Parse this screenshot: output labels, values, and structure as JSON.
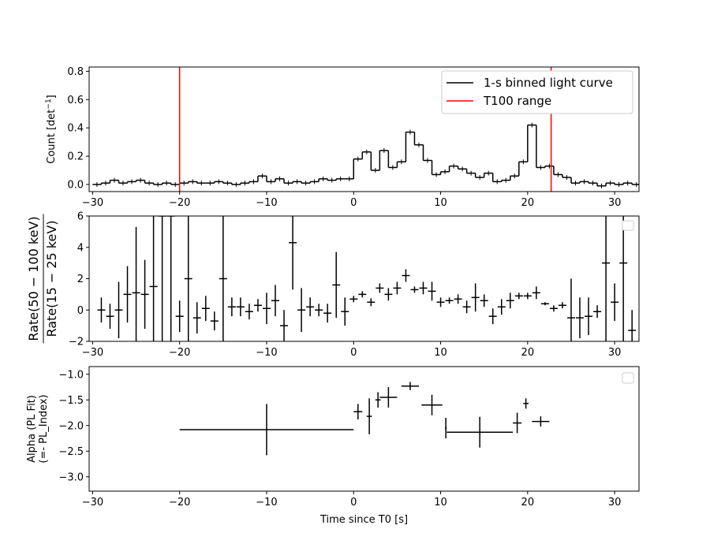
{
  "chart_data": [
    {
      "type": "step",
      "ylabel": {
        "text": "Count [det",
        "superscript": "−1",
        "suffix": "]"
      },
      "x": [
        -29.5,
        -28.5,
        -27.5,
        -26.5,
        -25.5,
        -24.5,
        -23.5,
        -22.5,
        -21.5,
        -20.5,
        -19.5,
        -18.5,
        -17.5,
        -16.5,
        -15.5,
        -14.5,
        -13.5,
        -12.5,
        -11.5,
        -10.5,
        -9.5,
        -8.5,
        -7.5,
        -6.5,
        -5.5,
        -4.5,
        -3.5,
        -2.5,
        -1.5,
        -0.5,
        0.5,
        1.5,
        2.5,
        3.5,
        4.5,
        5.5,
        6.5,
        7.5,
        8.5,
        9.5,
        10.5,
        11.5,
        12.5,
        13.5,
        14.5,
        15.5,
        16.5,
        17.5,
        18.5,
        19.5,
        20.5,
        21.5,
        22.5,
        23.5,
        24.5,
        25.5,
        26.5,
        27.5,
        28.5,
        29.5,
        30.5,
        31.5,
        32.5
      ],
      "series": [
        {
          "name": "1-s binned light curve",
          "color": "#000000",
          "values": [
            0.0,
            0.01,
            0.03,
            0.01,
            0.02,
            0.03,
            0.01,
            0.0,
            0.01,
            0.0,
            0.01,
            0.02,
            0.01,
            0.01,
            0.02,
            0.01,
            0.0,
            0.01,
            0.02,
            0.06,
            0.02,
            0.04,
            0.01,
            0.02,
            0.01,
            0.02,
            0.04,
            0.03,
            0.04,
            0.04,
            0.18,
            0.23,
            0.1,
            0.24,
            0.12,
            0.16,
            0.37,
            0.28,
            0.17,
            0.07,
            0.09,
            0.13,
            0.11,
            0.08,
            0.05,
            0.08,
            0.02,
            0.03,
            0.06,
            0.16,
            0.42,
            0.12,
            0.13,
            0.07,
            0.05,
            0.01,
            0.02,
            0.01,
            -0.01,
            0.01,
            0.0,
            0.01,
            0.0
          ]
        }
      ],
      "vlines": {
        "name": "T100 range",
        "color": "#ff0000",
        "x": [
          -20.0,
          22.7
        ]
      },
      "legend": "upper right",
      "xlim": [
        -30.4,
        32.8
      ],
      "xticks": [
        {
          "value": -30,
          "label": "−30"
        },
        {
          "value": -20,
          "label": "−20"
        },
        {
          "value": -10,
          "label": "−10"
        },
        0,
        10,
        20,
        30
      ],
      "ylim": [
        -0.05,
        0.83
      ],
      "yticks": [
        {
          "value": 0.0,
          "label": "0.0"
        },
        {
          "value": 0.2,
          "label": "0.2"
        },
        {
          "value": 0.4,
          "label": "0.4"
        },
        {
          "value": 0.6,
          "label": "0.6"
        },
        {
          "value": 0.8,
          "label": "0.8"
        }
      ]
    },
    {
      "type": "errorbar",
      "ylabel": {
        "numerator": "Rate(50 − 100 keV)",
        "denominator": "Rate(15 − 25 keV)"
      },
      "color": "#000000",
      "x": [
        -29,
        -28,
        -27,
        -26,
        -25,
        -24,
        -23,
        -22,
        -21,
        -20,
        -19,
        -18,
        -17,
        -16,
        -15,
        -14,
        -13,
        -12,
        -11,
        -10,
        -9,
        -8,
        -7,
        -6,
        -5,
        -4,
        -3,
        -2,
        -1,
        0,
        1,
        2,
        3,
        4,
        5,
        6,
        7,
        8,
        9,
        10,
        11,
        12,
        13,
        14,
        15,
        16,
        17,
        18,
        19,
        20,
        21,
        22,
        23,
        24,
        25,
        26,
        27,
        28,
        29,
        30,
        31,
        32
      ],
      "values": [
        0,
        -0.4,
        0,
        1.0,
        1.1,
        1.0,
        1.5,
        6,
        6,
        -0.4,
        2,
        -0.5,
        0.1,
        -0.7,
        2,
        0.2,
        0.2,
        -0.1,
        0.3,
        0.1,
        0.6,
        -1.0,
        4.3,
        0,
        0.2,
        0,
        -0.2,
        1.6,
        -0.1,
        0.7,
        1.0,
        0.5,
        1.4,
        1.0,
        1.4,
        2.2,
        1.3,
        1.4,
        1.2,
        0.5,
        0.6,
        0.7,
        0.2,
        0.8,
        0.6,
        -0.4,
        0.2,
        0.6,
        0.9,
        0.9,
        1.1,
        0.4,
        0.1,
        0.3,
        -0.5,
        -0.5,
        -0.4,
        -0.1,
        3,
        0.5,
        3,
        -1.3
      ],
      "errors": [
        0.8,
        0.8,
        1.8,
        1.8,
        4.2,
        2.2,
        8,
        8,
        8,
        1.0,
        8,
        1.0,
        0.8,
        0.6,
        8,
        0.6,
        0.6,
        0.5,
        0.4,
        1.0,
        1.0,
        1.0,
        3,
        1.4,
        0.6,
        0.4,
        0.6,
        2.1,
        0.9,
        0.2,
        0.2,
        0.25,
        0.3,
        0.4,
        0.4,
        0.4,
        0.2,
        0.4,
        0.6,
        0.3,
        0.2,
        0.3,
        0.4,
        0.9,
        0.4,
        0.5,
        0.5,
        0.5,
        0.2,
        0.2,
        0.4,
        0.1,
        0.2,
        0.2,
        2.5,
        1.3,
        1.2,
        0.4,
        8,
        1.2,
        8,
        1.3
      ],
      "xlim": [
        -30.4,
        32.8
      ],
      "xticks": [
        {
          "value": -30,
          "label": "−30"
        },
        {
          "value": -20,
          "label": "−20"
        },
        {
          "value": -10,
          "label": "−10"
        },
        0,
        10,
        20,
        30
      ],
      "ylim": [
        -2,
        6
      ],
      "yticks": [
        {
          "value": -2,
          "label": "−2"
        },
        0,
        2,
        4,
        6
      ]
    },
    {
      "type": "errorbar",
      "ylabel": {
        "line1": "Alpha (PL Fit)",
        "line2": "(=- PL_Index)"
      },
      "xlabel": "Time since T0 [s]",
      "color": "#000000",
      "x": [
        -10,
        0.5,
        1.8,
        2.8,
        4.0,
        6.5,
        9.0,
        10.6,
        14.5,
        18.8,
        19.8,
        21.5
      ],
      "xerr": [
        10,
        0.5,
        0.3,
        0.3,
        1.0,
        1.0,
        1.2,
        0.1,
        3.8,
        0.5,
        0.3,
        1.0
      ],
      "values": [
        -2.08,
        -1.73,
        -1.82,
        -1.5,
        -1.45,
        -1.23,
        -1.6,
        -2.05,
        -2.13,
        -1.95,
        -1.57,
        -1.92
      ],
      "errors": [
        0.5,
        0.15,
        0.35,
        0.15,
        0.2,
        0.08,
        0.2,
        0.2,
        0.3,
        0.2,
        0.1,
        0.1
      ],
      "xlim": [
        -30.4,
        32.8
      ],
      "xticks": [
        {
          "value": -30,
          "label": "−30"
        },
        {
          "value": -20,
          "label": "−20"
        },
        {
          "value": -10,
          "label": "−10"
        },
        0,
        10,
        20,
        30
      ],
      "ylim": [
        -3.28,
        -0.85
      ],
      "yticks": [
        {
          "value": -3.0,
          "label": "−3.0"
        },
        {
          "value": -2.5,
          "label": "−2.5"
        },
        {
          "value": -2.0,
          "label": "−2.0"
        },
        {
          "value": -1.5,
          "label": "−1.5"
        },
        {
          "value": -1.0,
          "label": "−1.0"
        }
      ]
    }
  ]
}
